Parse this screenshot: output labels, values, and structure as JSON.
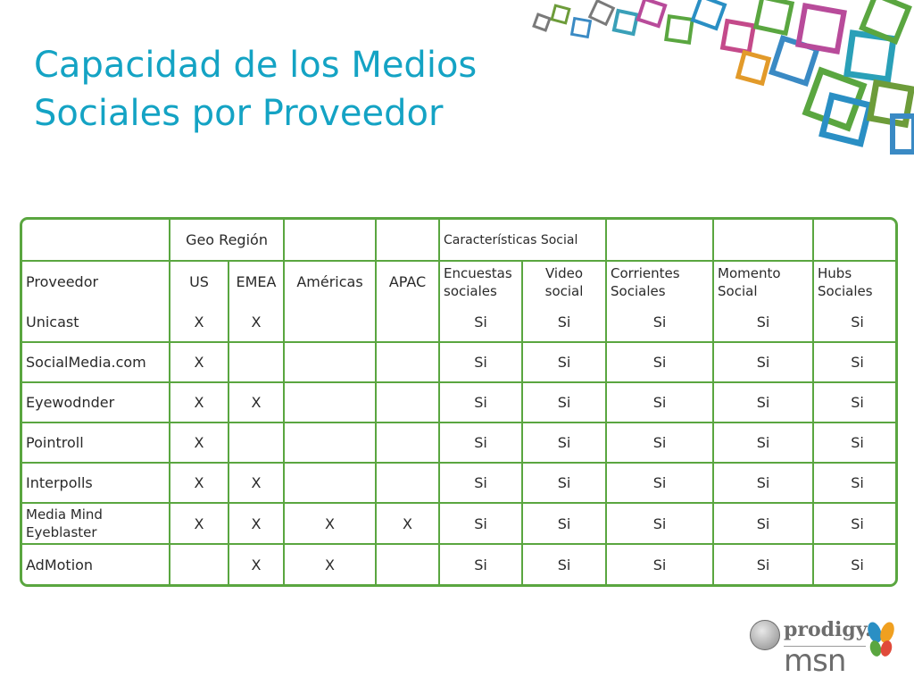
{
  "title": {
    "line1": "Capacidad de los Medios",
    "line2": "Sociales por Proveedor"
  },
  "header_top": {
    "geo": "Geo Región",
    "social": "Características Social"
  },
  "header_cols": {
    "proveedor": "Proveedor",
    "us": "US",
    "emea": "EMEA",
    "americas": "Américas",
    "apac": "APAC",
    "encuestas": "Encuestas sociales",
    "video": "Video social",
    "corrientes": "Corrientes Sociales",
    "momento": "Momento Social",
    "hubs": "Hubs Sociales"
  },
  "rows": [
    {
      "provider": "Unicast",
      "us": "X",
      "emea": "X",
      "americas": "",
      "apac": "",
      "encuestas": "Si",
      "video": "Si",
      "corrientes": "Si",
      "momento": "Si",
      "hubs": "Si"
    },
    {
      "provider": "SocialMedia.com",
      "us": "X",
      "emea": "",
      "americas": "",
      "apac": "",
      "encuestas": "Si",
      "video": "Si",
      "corrientes": "Si",
      "momento": "Si",
      "hubs": "Si"
    },
    {
      "provider": "Eyewodnder",
      "us": "X",
      "emea": "X",
      "americas": "",
      "apac": "",
      "encuestas": "Si",
      "video": "Si",
      "corrientes": "Si",
      "momento": "Si",
      "hubs": "Si"
    },
    {
      "provider": "Pointroll",
      "us": "X",
      "emea": "",
      "americas": "",
      "apac": "",
      "encuestas": "Si",
      "video": "Si",
      "corrientes": "Si",
      "momento": "Si",
      "hubs": "Si"
    },
    {
      "provider": "Interpolls",
      "us": "X",
      "emea": "X",
      "americas": "",
      "apac": "",
      "encuestas": "Si",
      "video": "Si",
      "corrientes": "Si",
      "momento": "Si",
      "hubs": "Si"
    },
    {
      "provider": "Media Mind Eyeblaster",
      "us": "X",
      "emea": "X",
      "americas": "X",
      "apac": "X",
      "encuestas": "Si",
      "video": "Si",
      "corrientes": "Si",
      "momento": "Si",
      "hubs": "Si"
    },
    {
      "provider": "AdMotion",
      "us": "",
      "emea": "X",
      "americas": "X",
      "apac": "",
      "encuestas": "Si",
      "video": "Si",
      "corrientes": "Si",
      "momento": "Si",
      "hubs": "Si"
    }
  ],
  "logo": {
    "prodigy": "prodigy.",
    "msn": "msn"
  },
  "colors": {
    "title": "#14a3c4",
    "table_border": "#5aa640"
  }
}
